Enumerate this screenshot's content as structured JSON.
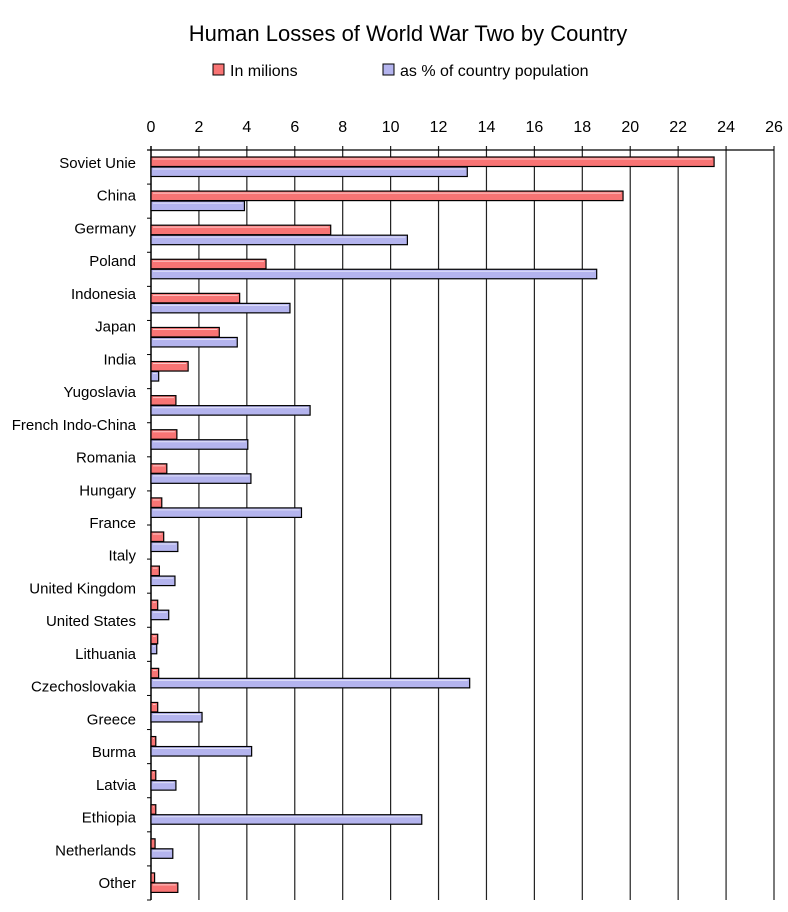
{
  "chart_data": {
    "type": "bar",
    "orientation": "horizontal",
    "title": "Human Losses of World War Two by Country",
    "xlabel": "",
    "ylabel": "",
    "xlim": [
      0,
      26
    ],
    "xticks": [
      "0",
      "2",
      "4",
      "6",
      "8",
      "10",
      "12",
      "14",
      "16",
      "18",
      "20",
      "22",
      "24",
      "26"
    ],
    "grid": "vertical",
    "legend_placement": "top",
    "categories": [
      "Soviet Unie",
      "China",
      "Germany",
      "Poland",
      "Indonesia",
      "Japan",
      "India",
      "Yugoslavia",
      "French Indo-China",
      "Romania",
      "Hungary",
      "France",
      "Italy",
      "United Kingdom",
      "United States",
      "Lithuania",
      "Czechoslovakia",
      "Greece",
      "Burma",
      "Latvia",
      "Ethiopia",
      "Netherlands",
      "Other"
    ],
    "series": [
      {
        "name": "In milions",
        "color": "#f87474",
        "values": [
          23.5,
          19.7,
          7.5,
          4.8,
          3.7,
          2.85,
          1.55,
          1.04,
          1.08,
          0.66,
          0.45,
          0.53,
          0.35,
          0.28,
          0.28,
          0.32,
          0.28,
          0.2,
          0.2,
          0.2,
          0.17,
          0.15,
          null
        ]
      },
      {
        "name": "as % of country population",
        "color": "#b4b4ee",
        "values": [
          13.2,
          3.9,
          10.7,
          18.6,
          5.8,
          3.6,
          0.32,
          6.64,
          4.04,
          4.17,
          6.28,
          1.12,
          1.0,
          0.74,
          0.24,
          13.3,
          2.13,
          4.2,
          1.04,
          11.3,
          0.91,
          1.12,
          null
        ]
      }
    ],
    "bar_color_overrides": [
      {
        "category": "Netherlands",
        "series": 1,
        "color": "#f87474"
      }
    ]
  }
}
